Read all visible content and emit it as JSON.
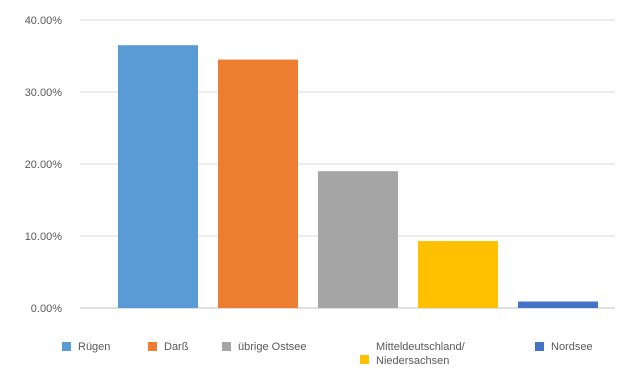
{
  "chart_data": {
    "type": "bar",
    "categories": [
      "Rügen",
      "Darß",
      "übrige Ostsee",
      "Mitteldeutschland/\nNiedersachsen",
      "Nordsee"
    ],
    "values": [
      36.5,
      34.5,
      19.0,
      9.3,
      0.9
    ],
    "colors": [
      "#5b9bd5",
      "#ed7d31",
      "#a5a5a5",
      "#ffc000",
      "#4472c4"
    ],
    "ylim": [
      0,
      40
    ],
    "yticks": [
      "0.00%",
      "10.00%",
      "20.00%",
      "30.00%",
      "40.00%"
    ],
    "grid": true,
    "legend_position": "bottom",
    "legend_style": "each bar is its own legend entry",
    "title": "",
    "xlabel": "",
    "ylabel": ""
  }
}
